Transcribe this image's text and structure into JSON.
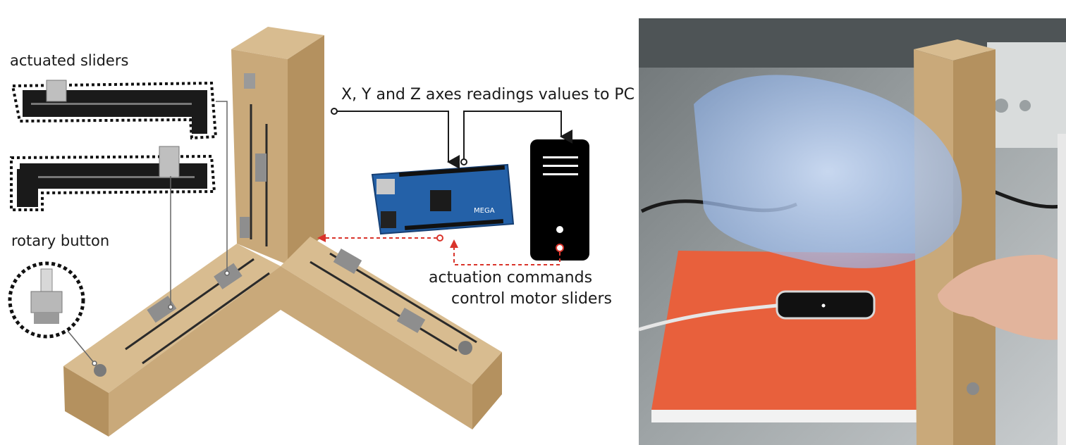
{
  "figure": {
    "labels": {
      "actuated_sliders": "actuated sliders",
      "rotary_button": "rotary button",
      "axes_readings": "X, Y and Z axes readings values to PC",
      "actuation_line1": "actuation commands",
      "actuation_line2": "control motor sliders"
    },
    "board": {
      "brand_text": "MEGA"
    },
    "colors": {
      "wood": "#c9a97a",
      "wood_dark": "#9c7a4e",
      "wood_side": "#b4915f",
      "pc_body": "#000000",
      "arrow_red": "#d9342b",
      "board_blue": "#2461a8",
      "book_orange": "#e8603c",
      "hologram": "#a9c4ee"
    }
  }
}
